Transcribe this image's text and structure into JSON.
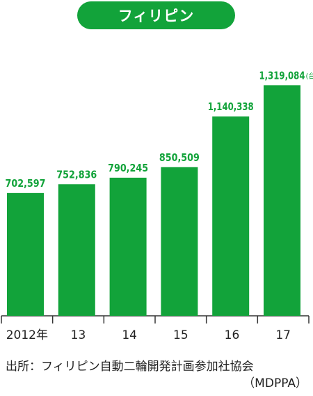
{
  "chart_data": {
    "type": "bar",
    "title": "フィリピン",
    "categories": [
      "2012年",
      "13",
      "14",
      "15",
      "16",
      "17"
    ],
    "values": [
      702597,
      752836,
      790245,
      850509,
      1140338,
      1319084
    ],
    "value_labels": [
      "702,597",
      "752,836",
      "790,245",
      "850,509",
      "1,140,338",
      "1,319,084"
    ],
    "unit_label": "(台)",
    "ylim": [
      0,
      1400000
    ],
    "grid": false,
    "bar_color": "#12a33a",
    "label_color": "#12a33a"
  },
  "source": {
    "line1": "出所：フィリピン自動二輪開発計画参加社協会",
    "line2": "（MDPPA）"
  }
}
